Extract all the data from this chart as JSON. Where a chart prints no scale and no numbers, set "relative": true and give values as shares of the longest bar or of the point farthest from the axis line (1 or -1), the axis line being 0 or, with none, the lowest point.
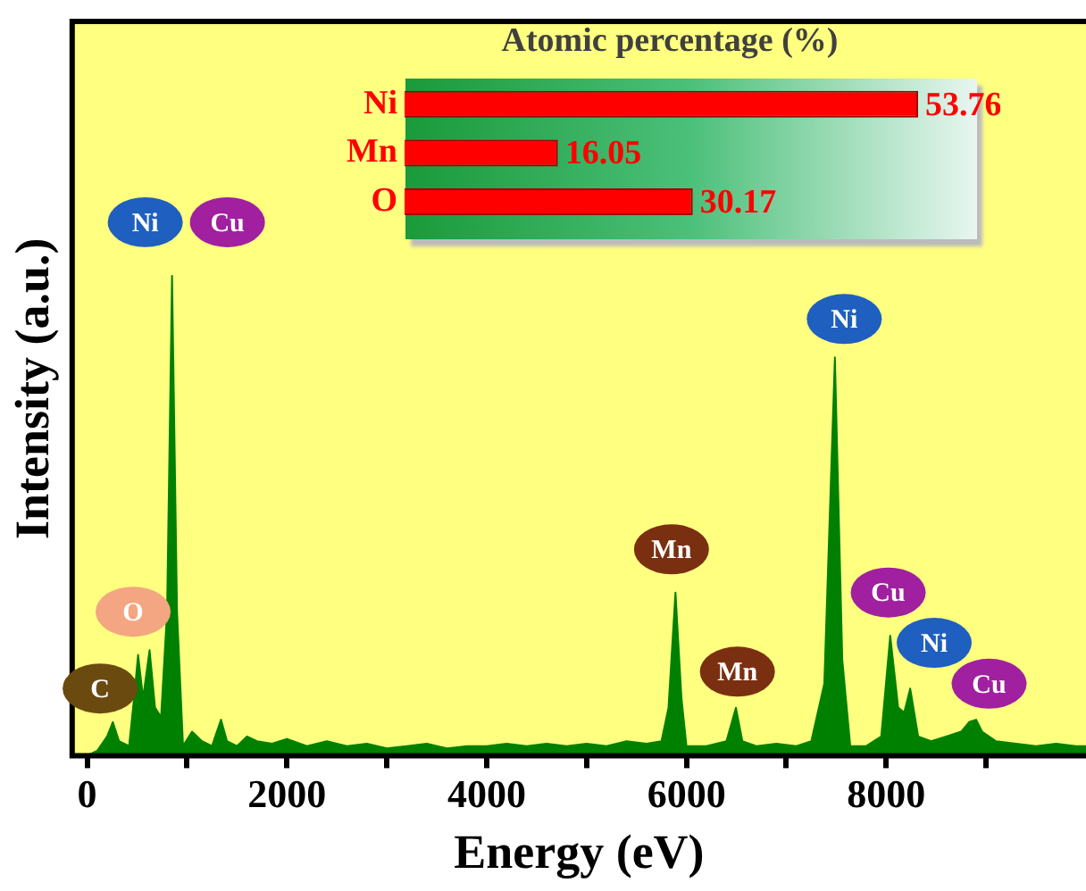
{
  "chart_data": [
    {
      "type": "area",
      "xlabel": "Energy (eV)",
      "ylabel": "Intensity (a.u.)",
      "relative": true,
      "color": "#008000",
      "grid": false,
      "legend": false,
      "tick_labels": "x",
      "x": [
        0,
        100,
        200,
        257,
        320,
        420,
        470,
        510,
        560,
        625,
        680,
        740,
        800,
        850,
        900,
        960,
        1050,
        1150,
        1250,
        1340,
        1400,
        1500,
        1600,
        1700,
        1850,
        2000,
        2200,
        2400,
        2600,
        2800,
        3000,
        3200,
        3400,
        3600,
        3800,
        4000,
        4200,
        4400,
        4600,
        4800,
        5000,
        5200,
        5400,
        5600,
        5750,
        5820,
        5890,
        5950,
        6000,
        6200,
        6400,
        6495,
        6560,
        6700,
        6900,
        7100,
        7250,
        7380,
        7486,
        7560,
        7640,
        7800,
        7950,
        8040,
        8120,
        8180,
        8240,
        8320,
        8450,
        8600,
        8750,
        8830,
        8900,
        8960,
        9100,
        9300,
        9500,
        9700,
        9900,
        10000
      ],
      "values": [
        0,
        0.01,
        0.04,
        0.07,
        0.03,
        0.02,
        0.12,
        0.21,
        0.12,
        0.22,
        0.1,
        0.08,
        0.3,
        1,
        0.3,
        0.02,
        0.05,
        0.03,
        0.02,
        0.075,
        0.03,
        0.02,
        0.04,
        0.03,
        0.025,
        0.035,
        0.02,
        0.03,
        0.02,
        0.025,
        0.015,
        0.02,
        0.025,
        0.015,
        0.02,
        0.02,
        0.025,
        0.02,
        0.025,
        0.02,
        0.025,
        0.02,
        0.03,
        0.025,
        0.03,
        0.1,
        0.34,
        0.12,
        0.02,
        0.02,
        0.03,
        0.1,
        0.03,
        0.02,
        0.025,
        0.02,
        0.03,
        0.15,
        0.83,
        0.2,
        0.02,
        0.02,
        0.04,
        0.25,
        0.1,
        0.09,
        0.14,
        0.04,
        0.03,
        0.04,
        0.05,
        0.07,
        0.075,
        0.05,
        0.03,
        0.025,
        0.02,
        0.025,
        0.02,
        0.02
      ],
      "xlim": [
        -150,
        10000
      ],
      "xticks": [
        0,
        {
          "value": 1000,
          "label": null
        },
        2000,
        {
          "value": 3000,
          "label": null
        },
        4000,
        {
          "value": 5000,
          "label": null
        },
        6000,
        {
          "value": 7000,
          "label": null
        },
        8000,
        {
          "value": 9000,
          "label": null
        }
      ],
      "annotations": [
        {
          "text": "Ni",
          "x": 850,
          "y": 1
        },
        {
          "text": "Cu",
          "x": 850,
          "y": 1
        },
        {
          "text": "O",
          "x": 460,
          "y": 0.3
        },
        {
          "text": "C",
          "x": 130,
          "y": 0.14
        },
        {
          "text": "Mn",
          "x": 5850,
          "y": 0.43
        },
        {
          "text": "Mn",
          "x": 6510,
          "y": 0.175
        },
        {
          "text": "Ni",
          "x": 7580,
          "y": 0.91
        },
        {
          "text": "Cu",
          "x": 8020,
          "y": 0.34
        },
        {
          "text": "Ni",
          "x": 8480,
          "y": 0.235
        },
        {
          "text": "Cu",
          "x": 9030,
          "y": 0.15
        }
      ]
    },
    {
      "type": "bar",
      "orientation": "horizontal",
      "title": "Atomic percentage (%)",
      "categories": [
        "Ni",
        "Mn",
        "O"
      ],
      "values": [
        53.76,
        16.05,
        30.17
      ],
      "color": "#ff0000",
      "data_labels": true,
      "grid": false,
      "legend": false,
      "tick_labels": "y"
    }
  ]
}
